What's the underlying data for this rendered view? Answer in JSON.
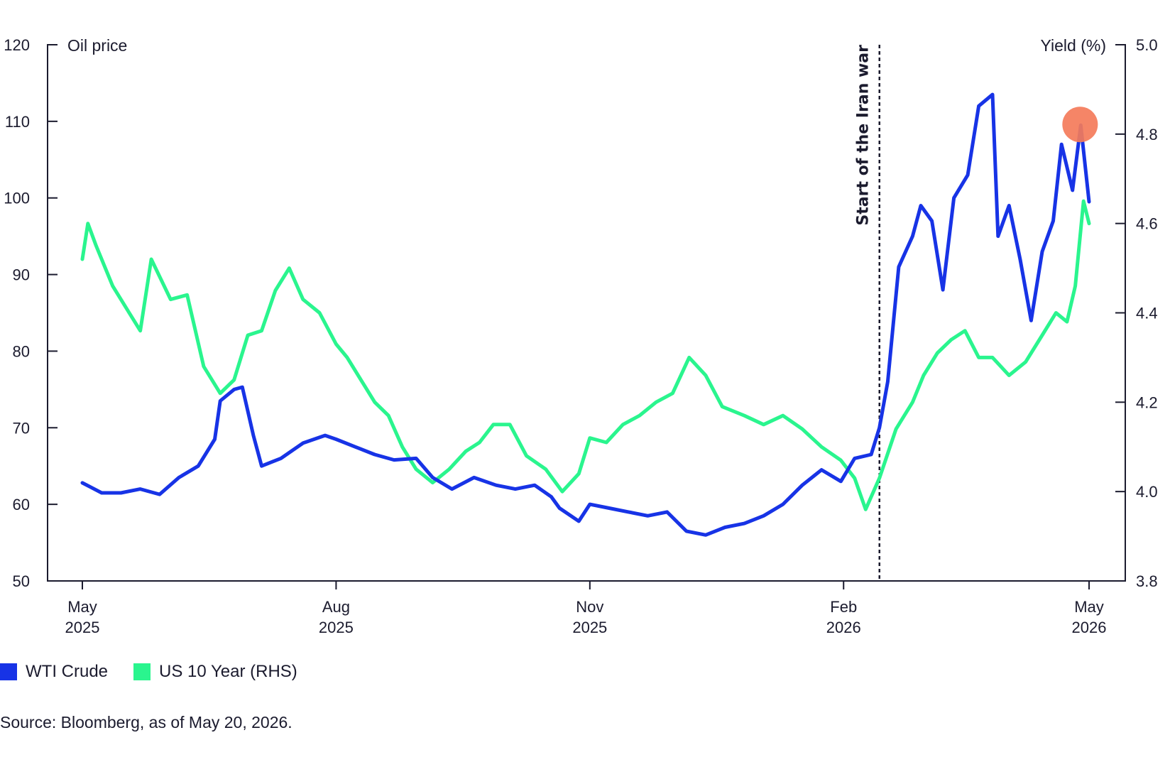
{
  "chart_data": {
    "type": "line",
    "y_left": {
      "label": "Oil price",
      "ticks": [
        50,
        60,
        70,
        80,
        90,
        100,
        110,
        120
      ],
      "range": [
        50,
        120
      ]
    },
    "y_right": {
      "label": "Yield (%)",
      "ticks": [
        "3.8",
        "4.0",
        "4.2",
        "4.4",
        "4.6",
        "4.8",
        "5.0"
      ],
      "range": [
        3.8,
        5.0
      ]
    },
    "x_axis": {
      "range": [
        "2025-05-01",
        "2026-05-01"
      ],
      "ticks": [
        {
          "date": "2025-05-01",
          "month": "May",
          "year": "2025"
        },
        {
          "date": "2025-08-01",
          "month": "Aug",
          "year": "2025"
        },
        {
          "date": "2025-11-01",
          "month": "Nov",
          "year": "2025"
        },
        {
          "date": "2026-02-01",
          "month": "Feb",
          "year": "2026"
        },
        {
          "date": "2026-05-01",
          "month": "May",
          "year": "2026"
        }
      ]
    },
    "annotation": {
      "date": "2026-02-14",
      "label": "Start of the Iran war"
    },
    "highlight": {
      "date": "2026-04-28",
      "value": 109.5,
      "color": "#f47b5a"
    },
    "series": [
      {
        "name": "WTI Crude",
        "axis": "left",
        "color": "#1733e6",
        "points": [
          [
            "2025-05-01",
            62.8
          ],
          [
            "2025-05-08",
            61.5
          ],
          [
            "2025-05-15",
            61.5
          ],
          [
            "2025-05-22",
            62.0
          ],
          [
            "2025-05-29",
            61.3
          ],
          [
            "2025-06-05",
            63.5
          ],
          [
            "2025-06-12",
            65.0
          ],
          [
            "2025-06-18",
            68.5
          ],
          [
            "2025-06-20",
            73.5
          ],
          [
            "2025-06-25",
            75.0
          ],
          [
            "2025-06-28",
            75.3
          ],
          [
            "2025-07-02",
            69.0
          ],
          [
            "2025-07-05",
            65.0
          ],
          [
            "2025-07-12",
            66.0
          ],
          [
            "2025-07-20",
            68.0
          ],
          [
            "2025-07-28",
            69.0
          ],
          [
            "2025-08-01",
            68.5
          ],
          [
            "2025-08-08",
            67.5
          ],
          [
            "2025-08-15",
            66.5
          ],
          [
            "2025-08-22",
            65.8
          ],
          [
            "2025-08-30",
            66.0
          ],
          [
            "2025-09-05",
            63.5
          ],
          [
            "2025-09-12",
            62.0
          ],
          [
            "2025-09-20",
            63.5
          ],
          [
            "2025-09-28",
            62.5
          ],
          [
            "2025-10-05",
            62.0
          ],
          [
            "2025-10-12",
            62.5
          ],
          [
            "2025-10-18",
            61.0
          ],
          [
            "2025-10-21",
            59.5
          ],
          [
            "2025-10-28",
            57.8
          ],
          [
            "2025-11-01",
            60.0
          ],
          [
            "2025-11-08",
            59.5
          ],
          [
            "2025-11-15",
            59.0
          ],
          [
            "2025-11-22",
            58.5
          ],
          [
            "2025-11-29",
            59.0
          ],
          [
            "2025-12-06",
            56.5
          ],
          [
            "2025-12-13",
            56.0
          ],
          [
            "2025-12-20",
            57.0
          ],
          [
            "2025-12-27",
            57.5
          ],
          [
            "2026-01-03",
            58.5
          ],
          [
            "2026-01-10",
            60.0
          ],
          [
            "2026-01-17",
            62.5
          ],
          [
            "2026-01-24",
            64.5
          ],
          [
            "2026-01-31",
            63.0
          ],
          [
            "2026-02-05",
            66.0
          ],
          [
            "2026-02-11",
            66.5
          ],
          [
            "2026-02-14",
            70.0
          ],
          [
            "2026-02-17",
            76.0
          ],
          [
            "2026-02-21",
            91.0
          ],
          [
            "2026-02-26",
            95.0
          ],
          [
            "2026-03-01",
            99.0
          ],
          [
            "2026-03-05",
            97.0
          ],
          [
            "2026-03-09",
            88.0
          ],
          [
            "2026-03-13",
            100.0
          ],
          [
            "2026-03-18",
            103.0
          ],
          [
            "2026-03-22",
            112.0
          ],
          [
            "2026-03-27",
            113.5
          ],
          [
            "2026-03-29",
            95.0
          ],
          [
            "2026-04-02",
            99.0
          ],
          [
            "2026-04-06",
            92.0
          ],
          [
            "2026-04-10",
            84.0
          ],
          [
            "2026-04-14",
            93.0
          ],
          [
            "2026-04-18",
            97.0
          ],
          [
            "2026-04-21",
            107.0
          ],
          [
            "2026-04-25",
            101.0
          ],
          [
            "2026-04-28",
            109.5
          ],
          [
            "2026-05-01",
            99.5
          ]
        ]
      },
      {
        "name": "US 10 Year (RHS)",
        "axis": "right",
        "color": "#2af58e",
        "points": [
          [
            "2025-05-01",
            4.52
          ],
          [
            "2025-05-03",
            4.6
          ],
          [
            "2025-05-06",
            4.55
          ],
          [
            "2025-05-12",
            4.46
          ],
          [
            "2025-05-18",
            4.4
          ],
          [
            "2025-05-22",
            4.36
          ],
          [
            "2025-05-26",
            4.52
          ],
          [
            "2025-06-02",
            4.43
          ],
          [
            "2025-06-08",
            4.44
          ],
          [
            "2025-06-14",
            4.28
          ],
          [
            "2025-06-20",
            4.22
          ],
          [
            "2025-06-25",
            4.25
          ],
          [
            "2025-06-30",
            4.35
          ],
          [
            "2025-07-05",
            4.36
          ],
          [
            "2025-07-10",
            4.45
          ],
          [
            "2025-07-15",
            4.5
          ],
          [
            "2025-07-20",
            4.43
          ],
          [
            "2025-07-26",
            4.4
          ],
          [
            "2025-08-01",
            4.33
          ],
          [
            "2025-08-05",
            4.3
          ],
          [
            "2025-08-10",
            4.25
          ],
          [
            "2025-08-15",
            4.2
          ],
          [
            "2025-08-20",
            4.17
          ],
          [
            "2025-08-25",
            4.1
          ],
          [
            "2025-08-30",
            4.05
          ],
          [
            "2025-09-05",
            4.02
          ],
          [
            "2025-09-11",
            4.05
          ],
          [
            "2025-09-17",
            4.09
          ],
          [
            "2025-09-22",
            4.11
          ],
          [
            "2025-09-27",
            4.15
          ],
          [
            "2025-10-03",
            4.15
          ],
          [
            "2025-10-09",
            4.08
          ],
          [
            "2025-10-16",
            4.05
          ],
          [
            "2025-10-22",
            4.0
          ],
          [
            "2025-10-28",
            4.04
          ],
          [
            "2025-11-01",
            4.12
          ],
          [
            "2025-11-07",
            4.11
          ],
          [
            "2025-11-13",
            4.15
          ],
          [
            "2025-11-19",
            4.17
          ],
          [
            "2025-11-25",
            4.2
          ],
          [
            "2025-12-01",
            4.22
          ],
          [
            "2025-12-07",
            4.3
          ],
          [
            "2025-12-13",
            4.26
          ],
          [
            "2025-12-19",
            4.19
          ],
          [
            "2025-12-27",
            4.17
          ],
          [
            "2026-01-03",
            4.15
          ],
          [
            "2026-01-10",
            4.17
          ],
          [
            "2026-01-17",
            4.14
          ],
          [
            "2026-01-24",
            4.1
          ],
          [
            "2026-01-31",
            4.07
          ],
          [
            "2026-02-05",
            4.03
          ],
          [
            "2026-02-09",
            3.96
          ],
          [
            "2026-02-14",
            4.03
          ],
          [
            "2026-02-20",
            4.14
          ],
          [
            "2026-02-26",
            4.2
          ],
          [
            "2026-03-02",
            4.26
          ],
          [
            "2026-03-07",
            4.31
          ],
          [
            "2026-03-12",
            4.34
          ],
          [
            "2026-03-17",
            4.36
          ],
          [
            "2026-03-22",
            4.3
          ],
          [
            "2026-03-27",
            4.3
          ],
          [
            "2026-04-02",
            4.26
          ],
          [
            "2026-04-08",
            4.29
          ],
          [
            "2026-04-14",
            4.35
          ],
          [
            "2026-04-19",
            4.4
          ],
          [
            "2026-04-23",
            4.38
          ],
          [
            "2026-04-26",
            4.46
          ],
          [
            "2026-04-29",
            4.65
          ],
          [
            "2026-05-01",
            4.6
          ]
        ]
      }
    ]
  },
  "legend": [
    {
      "label": "WTI Crude",
      "color": "#1733e6"
    },
    {
      "label": "US 10 Year (RHS)",
      "color": "#2af58e"
    }
  ],
  "source": "Source: Bloomberg, as of May 20, 2026."
}
